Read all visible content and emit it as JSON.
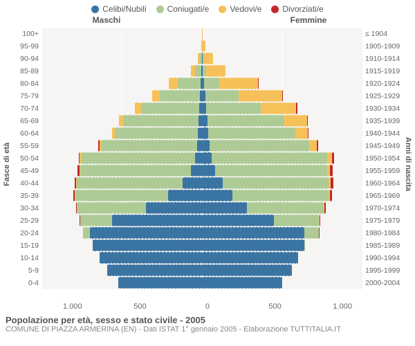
{
  "chart": {
    "type": "population-pyramid",
    "title": "Popolazione per età, sesso e stato civile - 2005",
    "subtitle": "COMUNE DI PIAZZA ARMERINA (EN) - Dati ISTAT 1° gennaio 2005 - Elaborazione TUTTITALIA.IT",
    "legend": [
      {
        "label": "Celibi/Nubili",
        "color": "#3a74a3"
      },
      {
        "label": "Coniugati/e",
        "color": "#aecb96"
      },
      {
        "label": "Vedovi/e",
        "color": "#f7c15a"
      },
      {
        "label": "Divorziati/e",
        "color": "#c22828"
      }
    ],
    "gender_labels": {
      "male": "Maschi",
      "female": "Femmine"
    },
    "y_left_label": "Fasce di età",
    "y_right_label": "Anni di nascita",
    "x_ticks": [
      "1.000",
      "500",
      "0",
      "500",
      "1.000"
    ],
    "x_max": 1000,
    "background_color": "#f6f5f3",
    "rows": [
      {
        "age": "100+",
        "birth": "≤ 1904",
        "m": [
          0,
          0,
          0,
          0
        ],
        "f": [
          0,
          0,
          3,
          0
        ]
      },
      {
        "age": "95-99",
        "birth": "1905-1909",
        "m": [
          0,
          0,
          5,
          0
        ],
        "f": [
          0,
          2,
          18,
          0
        ]
      },
      {
        "age": "90-94",
        "birth": "1910-1914",
        "m": [
          2,
          10,
          15,
          0
        ],
        "f": [
          3,
          8,
          60,
          0
        ]
      },
      {
        "age": "85-89",
        "birth": "1915-1919",
        "m": [
          5,
          40,
          25,
          0
        ],
        "f": [
          6,
          20,
          120,
          0
        ]
      },
      {
        "age": "80-84",
        "birth": "1920-1924",
        "m": [
          10,
          140,
          55,
          0
        ],
        "f": [
          14,
          95,
          240,
          2
        ]
      },
      {
        "age": "75-79",
        "birth": "1925-1929",
        "m": [
          14,
          250,
          45,
          1
        ],
        "f": [
          20,
          210,
          270,
          4
        ]
      },
      {
        "age": "70-74",
        "birth": "1930-1934",
        "m": [
          18,
          360,
          40,
          2
        ],
        "f": [
          28,
          340,
          220,
          5
        ]
      },
      {
        "age": "65-69",
        "birth": "1935-1939",
        "m": [
          22,
          470,
          25,
          2
        ],
        "f": [
          35,
          480,
          140,
          6
        ]
      },
      {
        "age": "60-64",
        "birth": "1940-1944",
        "m": [
          24,
          520,
          15,
          3
        ],
        "f": [
          40,
          540,
          80,
          6
        ]
      },
      {
        "age": "55-59",
        "birth": "1945-1949",
        "m": [
          30,
          600,
          10,
          5
        ],
        "f": [
          46,
          620,
          50,
          8
        ]
      },
      {
        "age": "50-54",
        "birth": "1950-1954",
        "m": [
          45,
          710,
          6,
          8
        ],
        "f": [
          60,
          720,
          30,
          14
        ]
      },
      {
        "age": "45-49",
        "birth": "1955-1959",
        "m": [
          70,
          690,
          4,
          10
        ],
        "f": [
          80,
          700,
          18,
          18
        ]
      },
      {
        "age": "40-44",
        "birth": "1960-1964",
        "m": [
          120,
          660,
          3,
          10
        ],
        "f": [
          130,
          660,
          10,
          18
        ]
      },
      {
        "age": "35-39",
        "birth": "1965-1969",
        "m": [
          210,
          580,
          2,
          8
        ],
        "f": [
          190,
          600,
          6,
          14
        ]
      },
      {
        "age": "30-34",
        "birth": "1970-1974",
        "m": [
          350,
          430,
          0,
          6
        ],
        "f": [
          280,
          480,
          3,
          10
        ]
      },
      {
        "age": "25-29",
        "birth": "1975-1979",
        "m": [
          560,
          200,
          0,
          3
        ],
        "f": [
          450,
          280,
          1,
          5
        ]
      },
      {
        "age": "20-24",
        "birth": "1980-1984",
        "m": [
          700,
          40,
          0,
          1
        ],
        "f": [
          640,
          90,
          0,
          2
        ]
      },
      {
        "age": "15-19",
        "birth": "1985-1989",
        "m": [
          680,
          0,
          0,
          0
        ],
        "f": [
          640,
          2,
          0,
          0
        ]
      },
      {
        "age": "10-14",
        "birth": "1990-1994",
        "m": [
          640,
          0,
          0,
          0
        ],
        "f": [
          600,
          0,
          0,
          0
        ]
      },
      {
        "age": "5-9",
        "birth": "1995-1999",
        "m": [
          590,
          0,
          0,
          0
        ],
        "f": [
          560,
          0,
          0,
          0
        ]
      },
      {
        "age": "0-4",
        "birth": "2000-2004",
        "m": [
          520,
          0,
          0,
          0
        ],
        "f": [
          500,
          0,
          0,
          0
        ]
      }
    ]
  }
}
